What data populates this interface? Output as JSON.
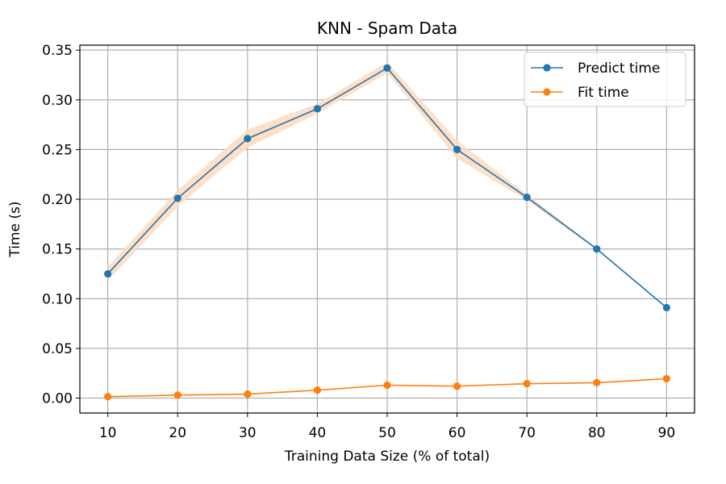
{
  "chart_data": {
    "type": "line",
    "title": "KNN - Spam Data",
    "xlabel": "Training Data Size (% of total)",
    "ylabel": "Time (s)",
    "x": [
      10,
      20,
      30,
      40,
      50,
      60,
      70,
      80,
      90
    ],
    "xticks": [
      "10",
      "20",
      "30",
      "40",
      "50",
      "60",
      "70",
      "80",
      "90"
    ],
    "yticks": [
      "0.00",
      "0.05",
      "0.10",
      "0.15",
      "0.20",
      "0.25",
      "0.30",
      "0.35"
    ],
    "xlim": [
      6,
      94
    ],
    "ylim": [
      -0.015,
      0.355
    ],
    "grid": true,
    "legend_position": "top-right",
    "series": [
      {
        "name": "Predict time",
        "color": "#1f77b4",
        "band_color": "#ffdcc0",
        "values": [
          0.125,
          0.201,
          0.261,
          0.291,
          0.332,
          0.25,
          0.202,
          0.15,
          0.091
        ],
        "band_low": [
          0.118,
          0.193,
          0.252,
          0.286,
          0.327,
          0.241,
          0.199,
          0.149,
          0.09
        ],
        "band_high": [
          0.132,
          0.209,
          0.27,
          0.296,
          0.338,
          0.259,
          0.205,
          0.151,
          0.092
        ]
      },
      {
        "name": "Fit time",
        "color": "#ff7f0e",
        "values": [
          0.0015,
          0.003,
          0.004,
          0.008,
          0.013,
          0.012,
          0.0145,
          0.0155,
          0.0195
        ]
      }
    ]
  }
}
